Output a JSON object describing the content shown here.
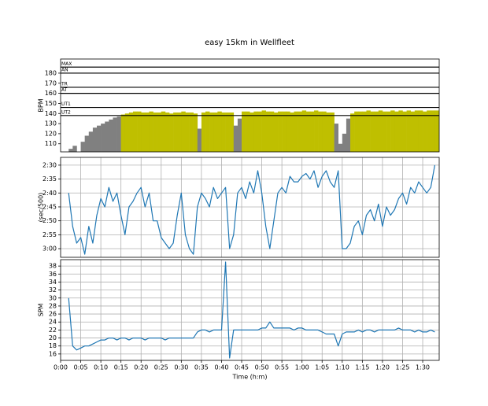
{
  "chart_data": [
    {
      "type": "bar",
      "title": "easy 15km in Wellfleet",
      "ylabel": "BPM",
      "color": "#808080",
      "zone_color": "#bfbf00",
      "grid": false,
      "x": [
        0,
        1,
        2,
        3,
        4,
        5,
        6,
        7,
        8,
        9,
        10,
        11,
        12,
        13,
        14,
        15,
        16,
        17,
        18,
        19,
        20,
        21,
        22,
        23,
        24,
        25,
        26,
        27,
        28,
        29,
        30,
        31,
        32,
        33,
        34,
        35,
        36,
        37,
        38,
        39,
        40,
        41,
        42,
        43,
        44,
        45,
        46,
        47,
        48,
        49,
        50,
        51,
        52,
        53,
        54,
        55,
        56,
        57,
        58,
        59,
        60,
        61,
        62,
        63,
        64,
        65,
        66,
        67,
        68,
        69,
        70,
        71,
        72,
        73,
        74,
        75,
        76,
        77,
        78,
        79,
        80,
        81,
        82,
        83,
        84,
        85,
        86,
        87,
        88,
        89,
        90,
        91,
        92,
        93
      ],
      "values": [
        null,
        null,
        105,
        108,
        100,
        112,
        118,
        122,
        126,
        128,
        130,
        132,
        134,
        136,
        137,
        139,
        140,
        141,
        142,
        142,
        141,
        141,
        142,
        141,
        141,
        142,
        141,
        140,
        141,
        141,
        142,
        141,
        141,
        140,
        125,
        141,
        142,
        141,
        141,
        142,
        141,
        141,
        141,
        128,
        135,
        142,
        142,
        141,
        142,
        142,
        143,
        142,
        142,
        141,
        142,
        142,
        142,
        141,
        142,
        142,
        143,
        142,
        142,
        143,
        142,
        142,
        141,
        141,
        130,
        110,
        120,
        135,
        140,
        142,
        142,
        142,
        143,
        142,
        142,
        143,
        142,
        142,
        143,
        142,
        143,
        142,
        143,
        142,
        143,
        143,
        142,
        143,
        143,
        143
      ],
      "xlim": [
        0,
        94.1
      ],
      "ylim": [
        102,
        194
      ],
      "yticks": [
        110,
        120,
        130,
        140,
        150,
        160,
        170,
        180
      ],
      "zones": [
        {
          "label": "MAX",
          "value": 186
        },
        {
          "label": "AN",
          "value": 180
        },
        {
          "label": "TR",
          "value": 166
        },
        {
          "label": "AT",
          "value": 160
        },
        {
          "label": "UT1",
          "value": 146
        },
        {
          "label": "UT2",
          "value": 138
        }
      ]
    },
    {
      "type": "line",
      "ylabel": "(sec/500)",
      "color": "#1f77b4",
      "grid": true,
      "x": [
        0,
        1,
        2,
        3,
        4,
        5,
        6,
        7,
        8,
        9,
        10,
        11,
        12,
        13,
        14,
        15,
        16,
        17,
        18,
        19,
        20,
        21,
        22,
        23,
        24,
        25,
        26,
        27,
        28,
        29,
        30,
        31,
        32,
        33,
        34,
        35,
        36,
        37,
        38,
        39,
        40,
        41,
        42,
        43,
        44,
        45,
        46,
        47,
        48,
        49,
        50,
        51,
        52,
        53,
        54,
        55,
        56,
        57,
        58,
        59,
        60,
        61,
        62,
        63,
        64,
        65,
        66,
        67,
        68,
        69,
        70,
        71,
        72,
        73,
        74,
        75,
        76,
        77,
        78,
        79,
        80,
        81,
        82,
        83,
        84,
        85,
        86,
        87,
        88,
        89,
        90,
        91,
        92,
        93
      ],
      "values": [
        null,
        null,
        160,
        172,
        178,
        176,
        182,
        172,
        178,
        168,
        162,
        165,
        158,
        163,
        160,
        168,
        175,
        165,
        163,
        160,
        158,
        165,
        160,
        170,
        170,
        176,
        178,
        180,
        178,
        168,
        160,
        175,
        180,
        182,
        165,
        160,
        162,
        165,
        158,
        162,
        160,
        158,
        180,
        175,
        160,
        158,
        162,
        156,
        160,
        152,
        160,
        172,
        180,
        170,
        160,
        158,
        160,
        154,
        156,
        156,
        154,
        153,
        155,
        152,
        158,
        154,
        152,
        156,
        158,
        152,
        180,
        180,
        178,
        172,
        170,
        175,
        168,
        166,
        170,
        164,
        172,
        165,
        168,
        166,
        162,
        160,
        164,
        158,
        160,
        156,
        158,
        160,
        158,
        150
      ],
      "xlim": [
        0,
        94.1
      ],
      "ylim": [
        183.1,
        147.2
      ],
      "yticks": [
        {
          "value": 150,
          "label": "2:30"
        },
        {
          "value": 155,
          "label": "2:35"
        },
        {
          "value": 160,
          "label": "2:40"
        },
        {
          "value": 165,
          "label": "2:45"
        },
        {
          "value": 170,
          "label": "2:50"
        },
        {
          "value": 175,
          "label": "2:55"
        },
        {
          "value": 180,
          "label": "3:00"
        }
      ]
    },
    {
      "type": "line",
      "ylabel": "SPM",
      "xlabel": "Time (h:m)",
      "color": "#1f77b4",
      "grid": true,
      "x": [
        0,
        1,
        2,
        3,
        4,
        5,
        6,
        7,
        8,
        9,
        10,
        11,
        12,
        13,
        14,
        15,
        16,
        17,
        18,
        19,
        20,
        21,
        22,
        23,
        24,
        25,
        26,
        27,
        28,
        29,
        30,
        31,
        32,
        33,
        34,
        35,
        36,
        37,
        38,
        39,
        40,
        41,
        42,
        43,
        44,
        45,
        46,
        47,
        48,
        49,
        50,
        51,
        52,
        53,
        54,
        55,
        56,
        57,
        58,
        59,
        60,
        61,
        62,
        63,
        64,
        65,
        66,
        67,
        68,
        69,
        70,
        71,
        72,
        73,
        74,
        75,
        76,
        77,
        78,
        79,
        80,
        81,
        82,
        83,
        84,
        85,
        86,
        87,
        88,
        89,
        90,
        91,
        92,
        93
      ],
      "values": [
        null,
        null,
        30,
        18,
        17,
        17.5,
        18,
        18,
        18.5,
        19,
        19.5,
        19.5,
        20,
        20,
        19.5,
        20,
        20,
        19.5,
        20,
        20,
        20,
        19.5,
        20,
        20,
        20,
        20,
        19.5,
        20,
        20,
        20,
        20,
        20,
        20,
        20,
        21.5,
        22,
        22,
        21.5,
        22,
        22,
        22,
        39,
        15,
        22,
        22,
        22,
        22,
        22,
        22,
        22,
        22.5,
        22.5,
        24,
        22.5,
        22.5,
        22.5,
        22.5,
        22.5,
        22,
        22.5,
        22.5,
        22,
        22,
        22,
        22,
        21.5,
        21,
        21,
        21,
        18,
        21,
        21.5,
        21.5,
        21.5,
        22,
        21.5,
        22,
        22,
        21.5,
        22,
        22,
        22,
        22,
        22,
        22.5,
        22,
        22,
        22,
        21.5,
        22,
        21.5,
        21.5,
        22,
        21.5
      ],
      "xlim": [
        0,
        94.1
      ],
      "ylim": [
        14.4,
        39.6
      ],
      "yticks": [
        16,
        18,
        20,
        22,
        24,
        26,
        28,
        30,
        32,
        34,
        36,
        38
      ],
      "xticks": [
        {
          "value": 0,
          "label": "0:00"
        },
        {
          "value": 5,
          "label": "0:05"
        },
        {
          "value": 10,
          "label": "0:10"
        },
        {
          "value": 15,
          "label": "0:15"
        },
        {
          "value": 20,
          "label": "0:20"
        },
        {
          "value": 25,
          "label": "0:25"
        },
        {
          "value": 30,
          "label": "0:30"
        },
        {
          "value": 35,
          "label": "0:35"
        },
        {
          "value": 40,
          "label": "0:40"
        },
        {
          "value": 45,
          "label": "0:45"
        },
        {
          "value": 50,
          "label": "0:50"
        },
        {
          "value": 55,
          "label": "0:55"
        },
        {
          "value": 60,
          "label": "1:00"
        },
        {
          "value": 65,
          "label": "1:05"
        },
        {
          "value": 70,
          "label": "1:10"
        },
        {
          "value": 75,
          "label": "1:15"
        },
        {
          "value": 80,
          "label": "1:20"
        },
        {
          "value": 85,
          "label": "1:25"
        },
        {
          "value": 90,
          "label": "1:30"
        }
      ]
    }
  ]
}
